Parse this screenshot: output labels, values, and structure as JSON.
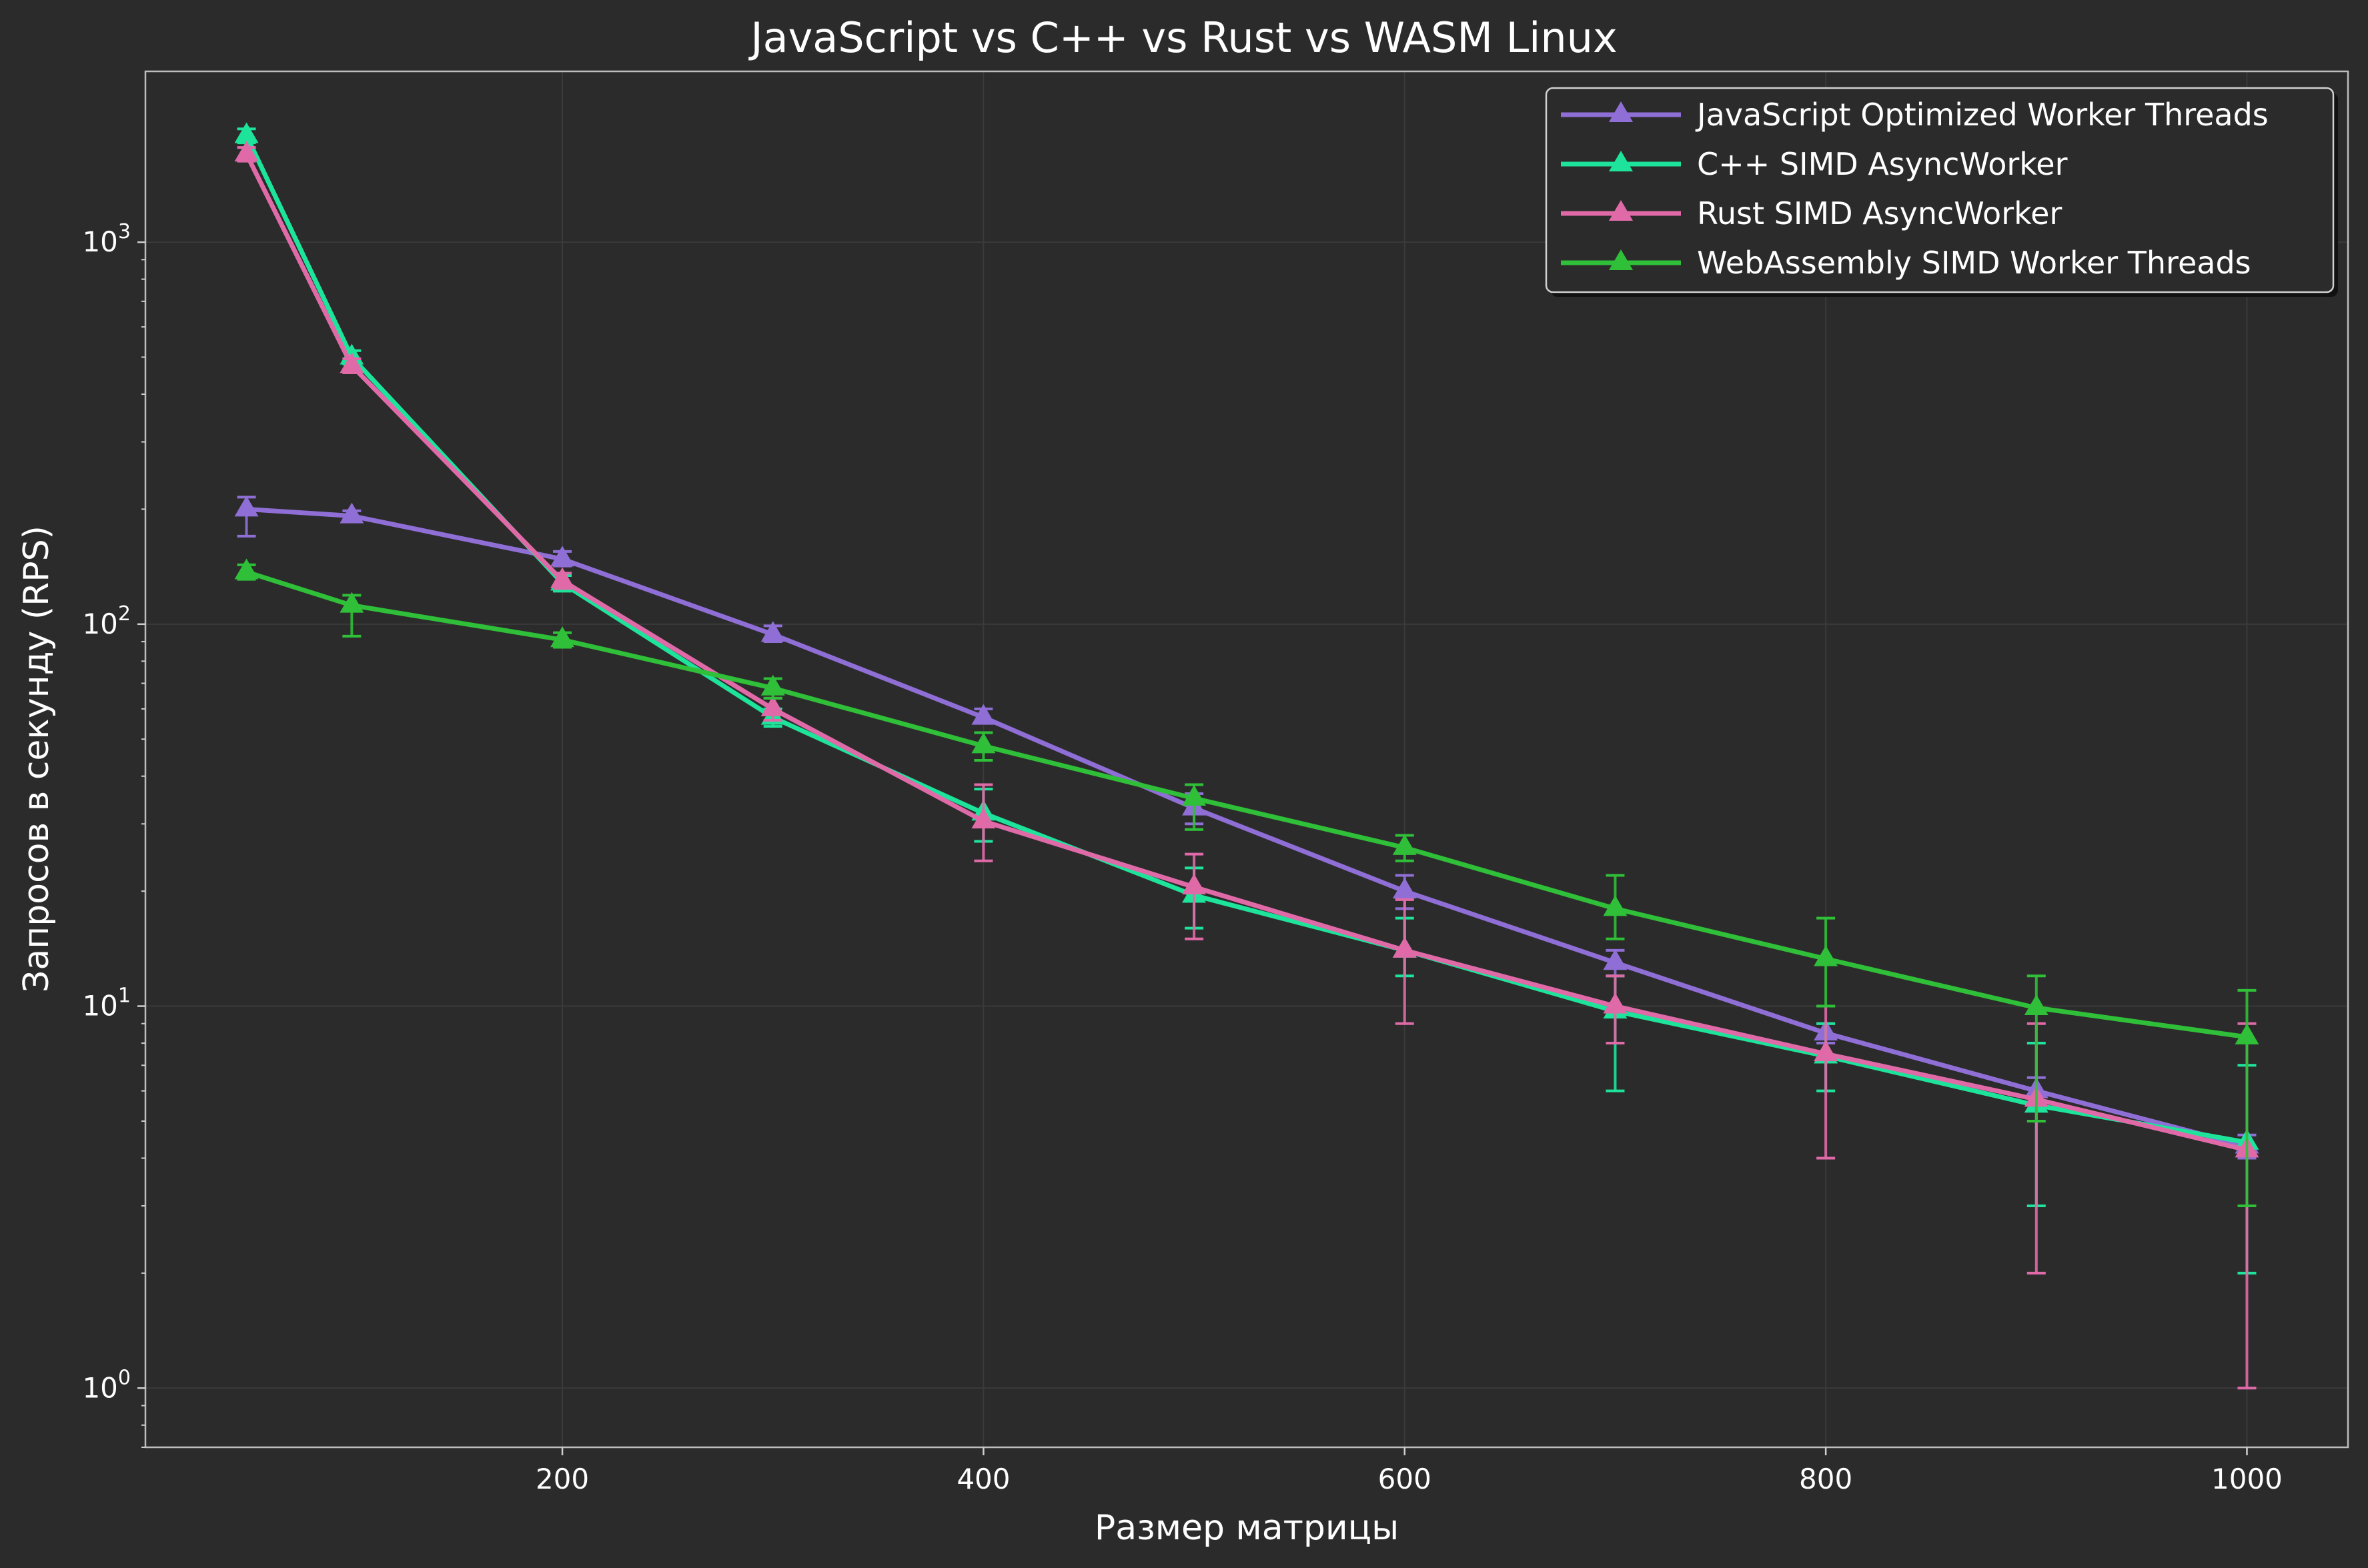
{
  "chart_data": {
    "type": "line",
    "title": "JavaScript vs C++ vs Rust vs WASM Linux",
    "xlabel": "Размер матрицы",
    "ylabel": "Запросов в секунду (RPS)",
    "x_ticks": [
      "200",
      "400",
      "600",
      "800",
      "1000"
    ],
    "y_scale": "log",
    "y_ticks": [
      {
        "base": "10",
        "exp": "0"
      },
      {
        "base": "10",
        "exp": "1"
      },
      {
        "base": "10",
        "exp": "2"
      },
      {
        "base": "10",
        "exp": "3"
      }
    ],
    "xlim": [
      2,
      1048
    ],
    "ylim": [
      0.7,
      2800
    ],
    "grid": true,
    "legend_position": "top-right",
    "x": [
      50,
      100,
      200,
      300,
      400,
      500,
      600,
      700,
      800,
      900,
      1000
    ],
    "series": [
      {
        "name": "JavaScript Optimized Worker Threads",
        "color": "#8f6fd6",
        "values": [
          200,
          192,
          148,
          94,
          57,
          33,
          20,
          13,
          8.5,
          6,
          4.3
        ],
        "err_low": [
          170,
          188,
          142,
          90,
          55,
          30,
          18,
          12,
          8,
          5.5,
          4
        ],
        "err_high": [
          215,
          198,
          155,
          99,
          60,
          36,
          22,
          14,
          9,
          6.5,
          4.6
        ]
      },
      {
        "name": "C++ SIMD AsyncWorker",
        "color": "#1ee39b",
        "values": [
          1900,
          500,
          128,
          57,
          32,
          19.5,
          14,
          9.7,
          7.4,
          5.5,
          4.4
        ],
        "err_low": [
          1820,
          480,
          122,
          54,
          27,
          16,
          12,
          6,
          6,
          3,
          2
        ],
        "err_high": [
          1980,
          520,
          134,
          60,
          37,
          23,
          17,
          12,
          9,
          8,
          7
        ]
      },
      {
        "name": "Rust SIMD AsyncWorker",
        "color": "#e06aa8",
        "values": [
          1700,
          475,
          130,
          60,
          30.5,
          20.5,
          14,
          10,
          7.5,
          5.7,
          4.2
        ],
        "err_low": [
          1630,
          455,
          124,
          56,
          24,
          15,
          9,
          8,
          4,
          2,
          1
        ],
        "err_high": [
          1770,
          495,
          136,
          64,
          38,
          25,
          19,
          12,
          10,
          9,
          9
        ]
      },
      {
        "name": "WebAssembly SIMD Worker Threads",
        "color": "#2fbf38",
        "values": [
          137,
          112,
          91,
          68,
          48,
          35,
          26,
          18,
          13.3,
          9.9,
          8.3
        ],
        "err_low": [
          131,
          93,
          87,
          64,
          44,
          29,
          24,
          15,
          10,
          5,
          3
        ],
        "err_high": [
          143,
          119,
          95,
          72,
          52,
          38,
          28,
          22,
          17,
          12,
          11
        ]
      }
    ]
  }
}
